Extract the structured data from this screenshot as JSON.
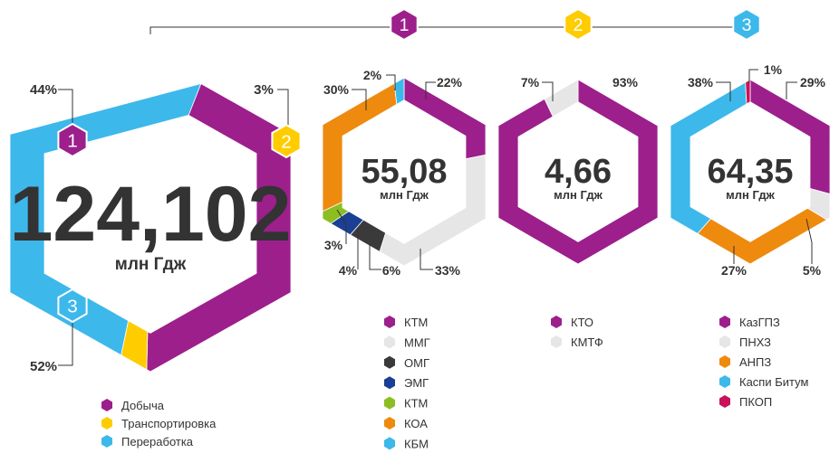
{
  "connector_badges": [
    {
      "label": "1",
      "color": "#9C1F8C"
    },
    {
      "label": "2",
      "color": "#FFCC00"
    },
    {
      "label": "3",
      "color": "#3DB8EB"
    }
  ],
  "chart_data": [
    {
      "type": "pie",
      "center_value": "124,102",
      "unit": "млн Гдж",
      "slices": [
        {
          "name": "Добыча",
          "value": 44,
          "label": "44%",
          "badge": "1",
          "color": "#9C1F8C"
        },
        {
          "name": "Транспортировка",
          "value": 3,
          "label": "3%",
          "badge": "2",
          "color": "#FFCC00"
        },
        {
          "name": "Переработка",
          "value": 52,
          "label": "52%",
          "badge": "3",
          "color": "#3DB8EB"
        }
      ]
    },
    {
      "type": "pie",
      "center_value": "55,08",
      "unit": "млн Гдж",
      "slices": [
        {
          "name": "КТМ",
          "value": 22,
          "label": "22%",
          "color": "#9C1F8C"
        },
        {
          "name": "ММГ",
          "value": 33,
          "label": "33%",
          "color": "#E6E6E6"
        },
        {
          "name": "ОМГ",
          "value": 6,
          "label": "6%",
          "color": "#3A3A3A"
        },
        {
          "name": "ЭМГ",
          "value": 4,
          "label": "4%",
          "color": "#1A3F94"
        },
        {
          "name": "КТМ",
          "value": 3,
          "label": "3%",
          "color": "#8CBE22"
        },
        {
          "name": "КОА",
          "value": 30,
          "label": "30%",
          "color": "#EE8A0E"
        },
        {
          "name": "КБМ",
          "value": 2,
          "label": "2%",
          "color": "#3DB8EB"
        }
      ]
    },
    {
      "type": "pie",
      "center_value": "4,66",
      "unit": "млн Гдж",
      "slices": [
        {
          "name": "КТО",
          "value": 93,
          "label": "93%",
          "color": "#9C1F8C"
        },
        {
          "name": "КМТФ",
          "value": 7,
          "label": "7%",
          "color": "#E6E6E6"
        }
      ]
    },
    {
      "type": "pie",
      "center_value": "64,35",
      "unit": "млн Гдж",
      "slices": [
        {
          "name": "КазГПЗ",
          "value": 29,
          "label": "29%",
          "color": "#9C1F8C"
        },
        {
          "name": "ПНХЗ",
          "value": 5,
          "label": "5%",
          "color": "#E6E6E6"
        },
        {
          "name": "АНПЗ",
          "value": 27,
          "label": "27%",
          "color": "#EE8A0E"
        },
        {
          "name": "Каспи Битум",
          "value": 38,
          "label": "38%",
          "color": "#3DB8EB"
        },
        {
          "name": "ПКОП",
          "value": 1,
          "label": "1%",
          "color": "#C8135A"
        }
      ]
    }
  ]
}
